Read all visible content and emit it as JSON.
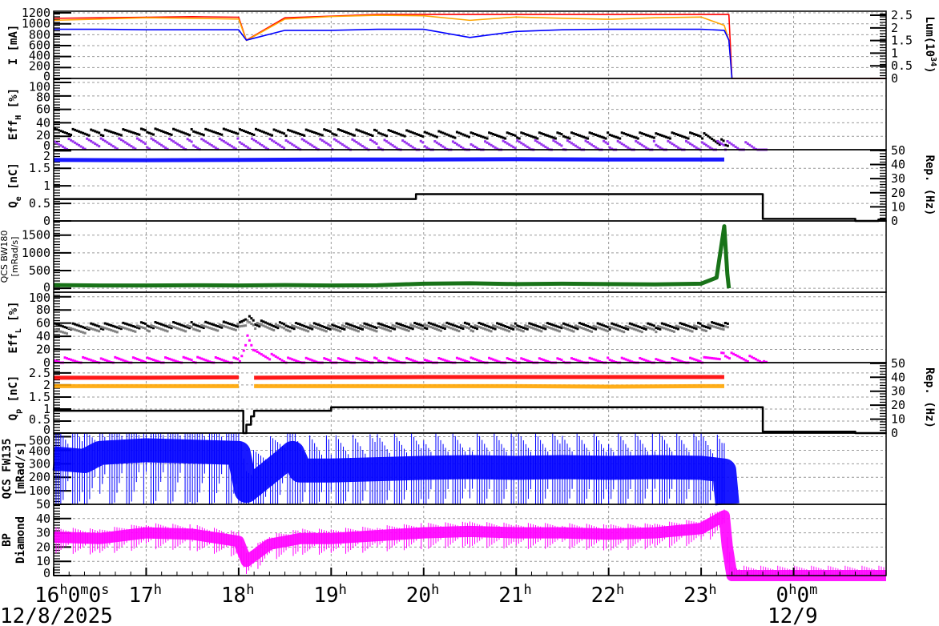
{
  "time_axis": {
    "range": [
      "16:00",
      "01:00"
    ],
    "ticks": [
      "16h0m0s",
      "17h",
      "18h",
      "19h",
      "20h",
      "21h",
      "22h",
      "23h",
      "0h0m"
    ],
    "tick_times": [
      "16:00",
      "17:00",
      "18:00",
      "19:00",
      "20:00",
      "21:00",
      "22:00",
      "23:00",
      "00:00"
    ],
    "dates": [
      "12/8/2025",
      "12/9"
    ]
  },
  "chart_data": [
    {
      "type": "line",
      "ylabel": {
        "main": "I [mA]"
      },
      "ylim": [
        0,
        1230
      ],
      "yticks": [
        "0",
        "200",
        "400",
        "600",
        "800",
        "1000",
        "1200"
      ],
      "y2label": {
        "main": "Lum(10",
        "sup": "34",
        "end": ")"
      },
      "y2lim": [
        0,
        2.66
      ],
      "y2ticks": [
        "0",
        "0.5",
        "1",
        "1.5",
        "2",
        "2.5"
      ],
      "x": [
        "16:00",
        "16:30",
        "17:00",
        "17:30",
        "18:00",
        "18:05",
        "18:30",
        "19:00",
        "19:30",
        "20:00",
        "20:30",
        "21:00",
        "21:30",
        "22:00",
        "22:30",
        "23:00",
        "23:15",
        "23:18",
        "23:20",
        "00:00",
        "00:30",
        "01:00"
      ],
      "series": [
        {
          "color": "#ff0000",
          "axis": "left",
          "values": [
            1100,
            1110,
            1120,
            1130,
            1120,
            700,
            1110,
            1140,
            1170,
            1170,
            1170,
            1170,
            1170,
            1170,
            1170,
            1170,
            1170,
            1170,
            0,
            0,
            0,
            0
          ]
        },
        {
          "color": "#ffa500",
          "axis": "right",
          "values": [
            2.3,
            2.35,
            2.4,
            2.38,
            2.35,
            1.5,
            2.35,
            2.45,
            2.5,
            2.48,
            2.3,
            2.43,
            2.38,
            2.34,
            2.4,
            2.43,
            2.1,
            1.5,
            0,
            null,
            null,
            null
          ]
        },
        {
          "color": "#0000ff",
          "axis": "left",
          "values": [
            900,
            900,
            890,
            890,
            890,
            700,
            880,
            880,
            900,
            900,
            750,
            860,
            890,
            900,
            900,
            900,
            880,
            700,
            0,
            null,
            null,
            null
          ]
        }
      ]
    },
    {
      "type": "scatter",
      "ylabel": {
        "main": "Eff",
        "sub": "H",
        "end": " [%]"
      },
      "ylim": [
        0,
        106
      ],
      "yticks": [
        "0",
        "20",
        "40",
        "60",
        "80",
        "100"
      ],
      "x": [
        "16:00",
        "16:30",
        "17:00",
        "17:30",
        "18:00",
        "18:30",
        "19:00",
        "19:30",
        "20:00",
        "20:30",
        "21:00",
        "21:30",
        "22:00",
        "22:30",
        "23:00",
        "23:15",
        "23:40"
      ],
      "series": [
        {
          "color": "#000000",
          "values": [
            27,
            25,
            27,
            26,
            27,
            25,
            26,
            25,
            24,
            21,
            21,
            21,
            21,
            21,
            21,
            9,
            null
          ]
        },
        {
          "color": "#9933ee",
          "values": [
            8,
            9,
            9,
            8,
            9,
            8,
            8,
            7,
            5,
            4,
            6,
            6,
            5,
            5,
            5,
            5,
            2
          ]
        }
      ]
    },
    {
      "type": "line",
      "ylabel": {
        "main": "Q",
        "sub": "e",
        "end": " [nC]"
      },
      "ylim": [
        0,
        2.03
      ],
      "yticks": [
        "0",
        "0.5",
        "1",
        "1.5",
        "2"
      ],
      "y2label": {
        "main": "Rep. (Hz)"
      },
      "y2lim": [
        0,
        50.5
      ],
      "y2ticks": [
        "0",
        "10",
        "20",
        "30",
        "40",
        "50"
      ],
      "x": [
        "16:00",
        "17:00",
        "18:00",
        "19:00",
        "19:55",
        "20:00",
        "21:00",
        "22:00",
        "23:00",
        "23:15",
        "23:40",
        "00:00",
        "00:40",
        "00:55",
        "01:00"
      ],
      "series": [
        {
          "color": "#0000ff",
          "axis": "left",
          "style": "band",
          "values": [
            1.74,
            1.73,
            1.74,
            1.75,
            1.75,
            1.75,
            1.76,
            1.75,
            1.75,
            1.75,
            null,
            null,
            null,
            null,
            null
          ]
        },
        {
          "color": "#000000",
          "axis": "right",
          "style": "step",
          "values": [
            15.5,
            15.5,
            15.5,
            15.5,
            19,
            19,
            19,
            19,
            19,
            19,
            1.5,
            1.5,
            0,
            1,
            1
          ]
        }
      ]
    },
    {
      "type": "line",
      "ylabel": {
        "main": "QCS BW180",
        "second": "[mRad/s]"
      },
      "ylim": [
        -110,
        1900
      ],
      "yticks": [
        "0",
        "500",
        "1000",
        "1500"
      ],
      "x": [
        "16:00",
        "16:30",
        "17:00",
        "17:30",
        "18:00",
        "18:30",
        "19:00",
        "19:30",
        "20:00",
        "20:30",
        "21:00",
        "21:30",
        "22:00",
        "22:30",
        "23:00",
        "23:10",
        "23:15",
        "23:17",
        "23:18"
      ],
      "series": [
        {
          "color": "#006400",
          "axis": "left",
          "style": "band",
          "values": [
            90,
            80,
            80,
            85,
            80,
            90,
            80,
            85,
            130,
            140,
            120,
            130,
            120,
            110,
            130,
            300,
            1750,
            400,
            0
          ]
        }
      ]
    },
    {
      "type": "scatter",
      "ylabel": {
        "main": "Eff",
        "sub": "L",
        "end": " [%]"
      },
      "ylim": [
        0,
        107
      ],
      "yticks": [
        "0",
        "20",
        "40",
        "60",
        "80",
        "100"
      ],
      "x": [
        "16:00",
        "16:30",
        "17:00",
        "17:30",
        "18:00",
        "18:05",
        "18:10",
        "18:30",
        "19:00",
        "19:30",
        "20:00",
        "20:30",
        "21:00",
        "21:30",
        "22:00",
        "22:30",
        "23:00",
        "23:15",
        "23:40"
      ],
      "series": [
        {
          "color": "#000000",
          "values": [
            55,
            55,
            57,
            57,
            58,
            68,
            60,
            56,
            55,
            55,
            56,
            56,
            55,
            56,
            55,
            55,
            56,
            58,
            null
          ]
        },
        {
          "color": "#808080",
          "values": [
            48,
            50,
            52,
            52,
            54,
            60,
            56,
            52,
            52,
            52,
            53,
            52,
            52,
            52,
            51,
            51,
            52,
            55,
            null
          ]
        },
        {
          "color": "#ff00ff",
          "values": [
            3,
            4,
            3,
            4,
            3,
            40,
            15,
            3,
            2,
            3,
            2,
            3,
            2,
            2,
            3,
            2,
            3,
            12,
            2
          ]
        }
      ]
    },
    {
      "type": "line",
      "ylabel": {
        "main": "Q",
        "sub": "p",
        "end": " [nC]"
      },
      "ylim": [
        0,
        2.93
      ],
      "yticks": [
        "0",
        "0.5",
        "1",
        "1.5",
        "2",
        "2.5"
      ],
      "y2label": {
        "main": "Rep. (Hz)"
      },
      "y2lim": [
        0,
        50.5
      ],
      "y2ticks": [
        "0",
        "10",
        "20",
        "30",
        "40",
        "50"
      ],
      "x": [
        "16:00",
        "17:00",
        "18:00",
        "18:03",
        "18:05",
        "18:08",
        "18:10",
        "19:00",
        "20:00",
        "21:00",
        "22:00",
        "23:00",
        "23:15",
        "23:40",
        "00:40",
        "01:00"
      ],
      "series": [
        {
          "color": "#ff0000",
          "axis": "left",
          "style": "band",
          "values": [
            2.3,
            2.3,
            2.32,
            null,
            null,
            null,
            2.3,
            2.32,
            2.33,
            2.33,
            2.33,
            2.33,
            2.33,
            null,
            null,
            null
          ]
        },
        {
          "color": "#ffa500",
          "axis": "left",
          "style": "band",
          "values": [
            1.95,
            1.95,
            1.95,
            null,
            null,
            null,
            1.95,
            1.95,
            1.95,
            1.95,
            1.93,
            1.95,
            1.95,
            null,
            null,
            null
          ]
        },
        {
          "color": "#000000",
          "axis": "right",
          "style": "step",
          "values": [
            16,
            16,
            16,
            0,
            6,
            12,
            16,
            18.5,
            18.5,
            18.5,
            18.5,
            18.5,
            18.5,
            1,
            0,
            0
          ]
        }
      ]
    },
    {
      "type": "line",
      "ylabel": {
        "main": "QCS FW135",
        "second": "[mRad/s]"
      },
      "ylim": [
        0,
        527
      ],
      "yticks": [
        "100",
        "200",
        "300",
        "400",
        "500"
      ],
      "x": [
        "16:00",
        "16:20",
        "16:30",
        "17:00",
        "17:30",
        "18:00",
        "18:05",
        "18:30",
        "18:35",
        "18:40",
        "19:00",
        "19:30",
        "20:00",
        "20:30",
        "21:00",
        "21:30",
        "22:00",
        "22:30",
        "23:00",
        "23:15",
        "23:17"
      ],
      "series": [
        {
          "color": "#0000ff",
          "axis": "left",
          "style": "band",
          "values": [
            340,
            320,
            380,
            400,
            390,
            380,
            100,
            330,
            380,
            250,
            250,
            260,
            270,
            275,
            270,
            275,
            270,
            275,
            270,
            250,
            0
          ]
        }
      ]
    },
    {
      "type": "line",
      "ylabel": {
        "main": "BP",
        "second": "Diamond"
      },
      "ylim": [
        0,
        50
      ],
      "yticks": [
        "0",
        "10",
        "20",
        "30",
        "40",
        "50"
      ],
      "x": [
        "16:00",
        "16:30",
        "17:00",
        "17:30",
        "18:00",
        "18:05",
        "18:20",
        "18:40",
        "19:00",
        "19:30",
        "20:00",
        "20:30",
        "21:00",
        "21:30",
        "22:00",
        "22:30",
        "23:00",
        "23:15",
        "23:17",
        "23:20",
        "01:00"
      ],
      "series": [
        {
          "color": "#ff00ff",
          "axis": "left",
          "style": "band",
          "values": [
            27,
            26,
            30,
            29,
            24,
            10,
            22,
            26,
            26,
            28,
            30,
            31,
            30,
            30,
            29,
            30,
            33,
            42,
            20,
            0,
            0
          ]
        }
      ]
    }
  ]
}
